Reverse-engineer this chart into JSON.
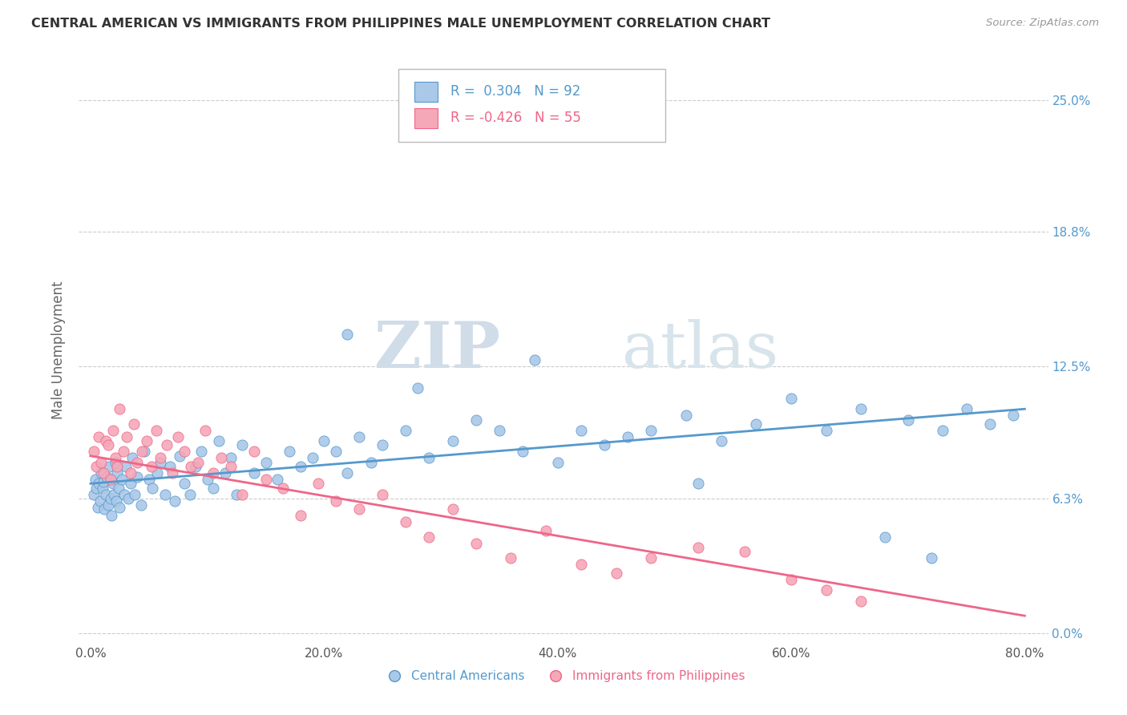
{
  "title": "CENTRAL AMERICAN VS IMMIGRANTS FROM PHILIPPINES MALE UNEMPLOYMENT CORRELATION CHART",
  "source": "Source: ZipAtlas.com",
  "ylabel": "Male Unemployment",
  "ytick_values": [
    0.0,
    6.3,
    12.5,
    18.8,
    25.0
  ],
  "xtick_values": [
    0.0,
    20.0,
    40.0,
    60.0,
    80.0
  ],
  "xlim": [
    -1.0,
    82.0
  ],
  "ylim": [
    -0.5,
    27.0
  ],
  "color_blue": "#aac8e8",
  "color_pink": "#f5a8b8",
  "line_blue": "#5599cc",
  "line_pink": "#ee6688",
  "watermark_zip": "ZIP",
  "watermark_atlas": "atlas",
  "legend_label1": "Central Americans",
  "legend_label2": "Immigrants from Philippines",
  "blue_line_y0": 7.0,
  "blue_line_y1": 10.5,
  "pink_line_y0": 8.3,
  "pink_line_y1": 0.8,
  "blue_scatter_x": [
    0.3,
    0.4,
    0.5,
    0.6,
    0.7,
    0.8,
    0.9,
    1.0,
    1.1,
    1.2,
    1.3,
    1.4,
    1.5,
    1.6,
    1.7,
    1.8,
    1.9,
    2.0,
    2.1,
    2.2,
    2.3,
    2.4,
    2.5,
    2.7,
    2.9,
    3.0,
    3.2,
    3.4,
    3.6,
    3.8,
    4.0,
    4.3,
    4.6,
    5.0,
    5.3,
    5.7,
    6.0,
    6.4,
    6.8,
    7.2,
    7.6,
    8.0,
    8.5,
    9.0,
    9.5,
    10.0,
    10.5,
    11.0,
    11.5,
    12.0,
    12.5,
    13.0,
    14.0,
    15.0,
    16.0,
    17.0,
    18.0,
    19.0,
    20.0,
    21.0,
    22.0,
    23.0,
    24.0,
    25.0,
    27.0,
    29.0,
    31.0,
    33.0,
    35.0,
    37.0,
    40.0,
    42.0,
    44.0,
    46.0,
    48.0,
    51.0,
    54.0,
    57.0,
    60.0,
    63.0,
    66.0,
    70.0,
    73.0,
    75.0,
    77.0,
    79.0,
    22.0,
    28.0,
    38.0,
    52.0,
    68.0,
    72.0
  ],
  "blue_scatter_y": [
    6.5,
    7.2,
    6.8,
    5.9,
    7.0,
    6.2,
    7.5,
    6.8,
    7.1,
    5.8,
    6.5,
    7.3,
    6.0,
    7.8,
    6.3,
    5.5,
    7.0,
    6.5,
    8.0,
    6.2,
    7.5,
    6.8,
    5.9,
    7.2,
    6.5,
    7.8,
    6.3,
    7.0,
    8.2,
    6.5,
    7.3,
    6.0,
    8.5,
    7.2,
    6.8,
    7.5,
    8.0,
    6.5,
    7.8,
    6.2,
    8.3,
    7.0,
    6.5,
    7.8,
    8.5,
    7.2,
    6.8,
    9.0,
    7.5,
    8.2,
    6.5,
    8.8,
    7.5,
    8.0,
    7.2,
    8.5,
    7.8,
    8.2,
    9.0,
    8.5,
    7.5,
    9.2,
    8.0,
    8.8,
    9.5,
    8.2,
    9.0,
    10.0,
    9.5,
    8.5,
    8.0,
    9.5,
    8.8,
    9.2,
    9.5,
    10.2,
    9.0,
    9.8,
    11.0,
    9.5,
    10.5,
    10.0,
    9.5,
    10.5,
    9.8,
    10.2,
    14.0,
    11.5,
    12.8,
    7.0,
    4.5,
    3.5
  ],
  "pink_scatter_x": [
    0.3,
    0.5,
    0.7,
    0.9,
    1.1,
    1.3,
    1.5,
    1.7,
    1.9,
    2.1,
    2.3,
    2.5,
    2.8,
    3.1,
    3.4,
    3.7,
    4.0,
    4.4,
    4.8,
    5.2,
    5.6,
    6.0,
    6.5,
    7.0,
    7.5,
    8.0,
    8.6,
    9.2,
    9.8,
    10.5,
    11.2,
    12.0,
    13.0,
    14.0,
    15.0,
    16.5,
    18.0,
    19.5,
    21.0,
    23.0,
    25.0,
    27.0,
    29.0,
    31.0,
    33.0,
    36.0,
    39.0,
    42.0,
    45.0,
    48.0,
    52.0,
    56.0,
    60.0,
    63.0,
    66.0
  ],
  "pink_scatter_y": [
    8.5,
    7.8,
    9.2,
    8.0,
    7.5,
    9.0,
    8.8,
    7.2,
    9.5,
    8.2,
    7.8,
    10.5,
    8.5,
    9.2,
    7.5,
    9.8,
    8.0,
    8.5,
    9.0,
    7.8,
    9.5,
    8.2,
    8.8,
    7.5,
    9.2,
    8.5,
    7.8,
    8.0,
    9.5,
    7.5,
    8.2,
    7.8,
    6.5,
    8.5,
    7.2,
    6.8,
    5.5,
    7.0,
    6.2,
    5.8,
    6.5,
    5.2,
    4.5,
    5.8,
    4.2,
    3.5,
    4.8,
    3.2,
    2.8,
    3.5,
    4.0,
    3.8,
    2.5,
    2.0,
    1.5
  ]
}
